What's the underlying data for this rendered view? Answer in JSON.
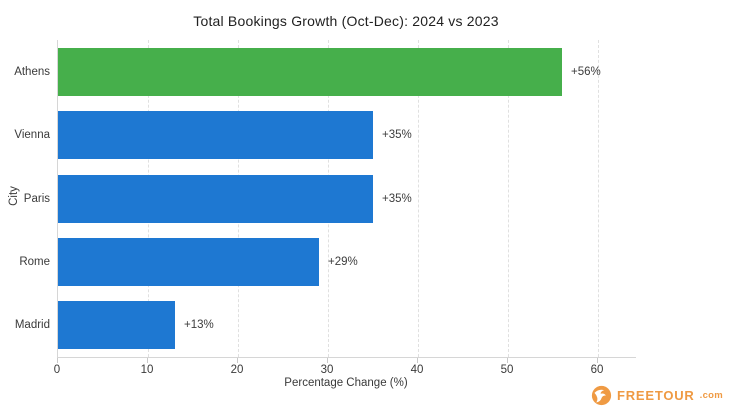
{
  "chart_data": {
    "type": "bar",
    "orientation": "horizontal",
    "title": "Total Bookings Growth (Oct-Dec): 2024 vs 2023",
    "xlabel": "Percentage Change (%)",
    "ylabel": "City",
    "categories": [
      "Athens",
      "Vienna",
      "Paris",
      "Rome",
      "Madrid"
    ],
    "values": [
      56,
      35,
      35,
      29,
      13
    ],
    "value_labels": [
      "+56%",
      "+35%",
      "+35%",
      "+29%",
      "+13%"
    ],
    "bar_colors": [
      "#46af4b",
      "#1e78d2",
      "#1e78d2",
      "#1e78d2",
      "#1e78d2"
    ],
    "xlim": [
      0,
      64
    ],
    "xticks": [
      0,
      10,
      20,
      30,
      40,
      50,
      60
    ],
    "grid": "vertical-dashed",
    "legend": "none",
    "highlight_color": "#46af4b",
    "default_color": "#1e78d2"
  },
  "branding": {
    "name": "FREETOUR",
    "tld": ".com",
    "color": "#ef9a43"
  }
}
